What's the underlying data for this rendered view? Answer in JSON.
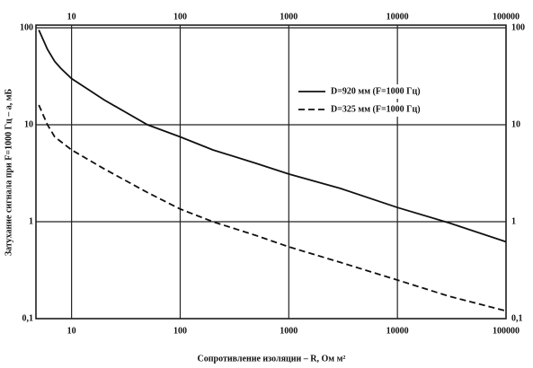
{
  "chart_data": {
    "type": "line",
    "xlabel": "Сопротивление изоляции – R, Ом м²",
    "ylabel": "Затухание сигнала при F=1000 Гц – a, мБ",
    "xscale": "log",
    "yscale": "log",
    "grid": true,
    "legend": "upper right",
    "xlim": [
      4.7,
      100000
    ],
    "ylim": [
      0.1,
      100
    ],
    "xticks": [
      10,
      100,
      1000,
      10000,
      100000
    ],
    "yticks": [
      {
        "value": 0.1,
        "label": "0,1"
      },
      1,
      10,
      100
    ],
    "series": [
      {
        "name": "D=920 мм (F=1000 Гц)",
        "color": "#111111",
        "dash": "solid",
        "x": [
          5,
          6,
          7,
          8,
          10,
          20,
          50,
          100,
          200,
          500,
          1000,
          3000,
          10000,
          30000,
          100000
        ],
        "values": [
          95,
          60,
          45,
          38,
          30,
          18,
          10,
          7.5,
          5.5,
          4,
          3.1,
          2.2,
          1.4,
          0.97,
          0.62
        ]
      },
      {
        "name": "D=325 мм (F=1000 Гц)",
        "color": "#111111",
        "dash": "dashed",
        "x": [
          5,
          6,
          7,
          10,
          20,
          50,
          100,
          200,
          500,
          1000,
          3000,
          10000,
          30000,
          100000
        ],
        "values": [
          16,
          10,
          7.5,
          5.5,
          3.5,
          2,
          1.35,
          1,
          0.72,
          0.55,
          0.38,
          0.25,
          0.17,
          0.12
        ]
      }
    ]
  }
}
